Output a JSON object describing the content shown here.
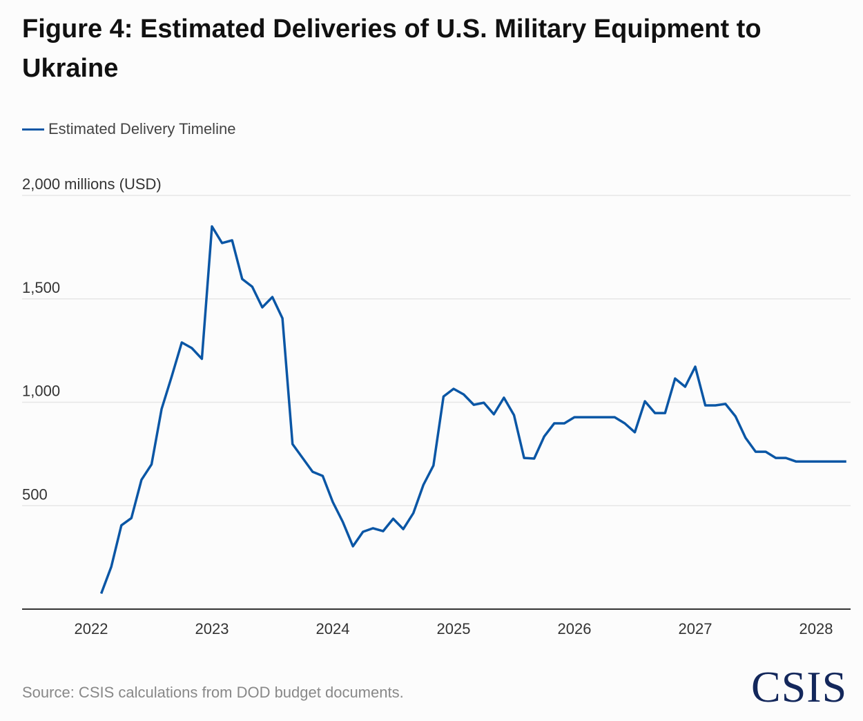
{
  "title": "Figure 4: Estimated Deliveries of U.S. Military Equipment to Ukraine",
  "source": "Source: CSIS calculations from DOD budget documents.",
  "logo": "CSIS",
  "colors": {
    "line": "#0a56a5",
    "grid": "#e6e6e6",
    "axis": "#333333"
  },
  "chart_data": {
    "type": "line",
    "title": "Figure 4: Estimated Deliveries of U.S. Military Equipment to Ukraine",
    "ylabel": "millions (USD)",
    "y_top_label": "2,000 millions (USD)",
    "ylim": [
      0,
      2000
    ],
    "yticks": [
      {
        "value": 500,
        "label": "500"
      },
      {
        "value": 1000,
        "label": "1,000"
      },
      {
        "value": 1500,
        "label": "1,500"
      }
    ],
    "xticks": [
      "2022",
      "2023",
      "2024",
      "2025",
      "2026",
      "2027",
      "2028"
    ],
    "x_start_year": 2022,
    "x_start_month": 2,
    "legend": [
      "Estimated Delivery Timeline"
    ],
    "legend_position": "top-left",
    "grid": true,
    "series": [
      {
        "name": "Estimated Delivery Timeline",
        "values": [
          75,
          205,
          405,
          440,
          625,
          700,
          968,
          1125,
          1289,
          1262,
          1210,
          1850,
          1770,
          1783,
          1596,
          1559,
          1459,
          1509,
          1406,
          798,
          731,
          664,
          644,
          518,
          421,
          304,
          374,
          391,
          377,
          437,
          387,
          464,
          601,
          694,
          1028,
          1065,
          1038,
          988,
          998,
          942,
          1022,
          938,
          731,
          728,
          835,
          898,
          898,
          928,
          928,
          928,
          928,
          928,
          898,
          855,
          1005,
          948,
          948,
          1115,
          1075,
          1172,
          985,
          985,
          992,
          932,
          828,
          761,
          761,
          731,
          731,
          714,
          714,
          714,
          714,
          714,
          714
        ]
      }
    ]
  }
}
